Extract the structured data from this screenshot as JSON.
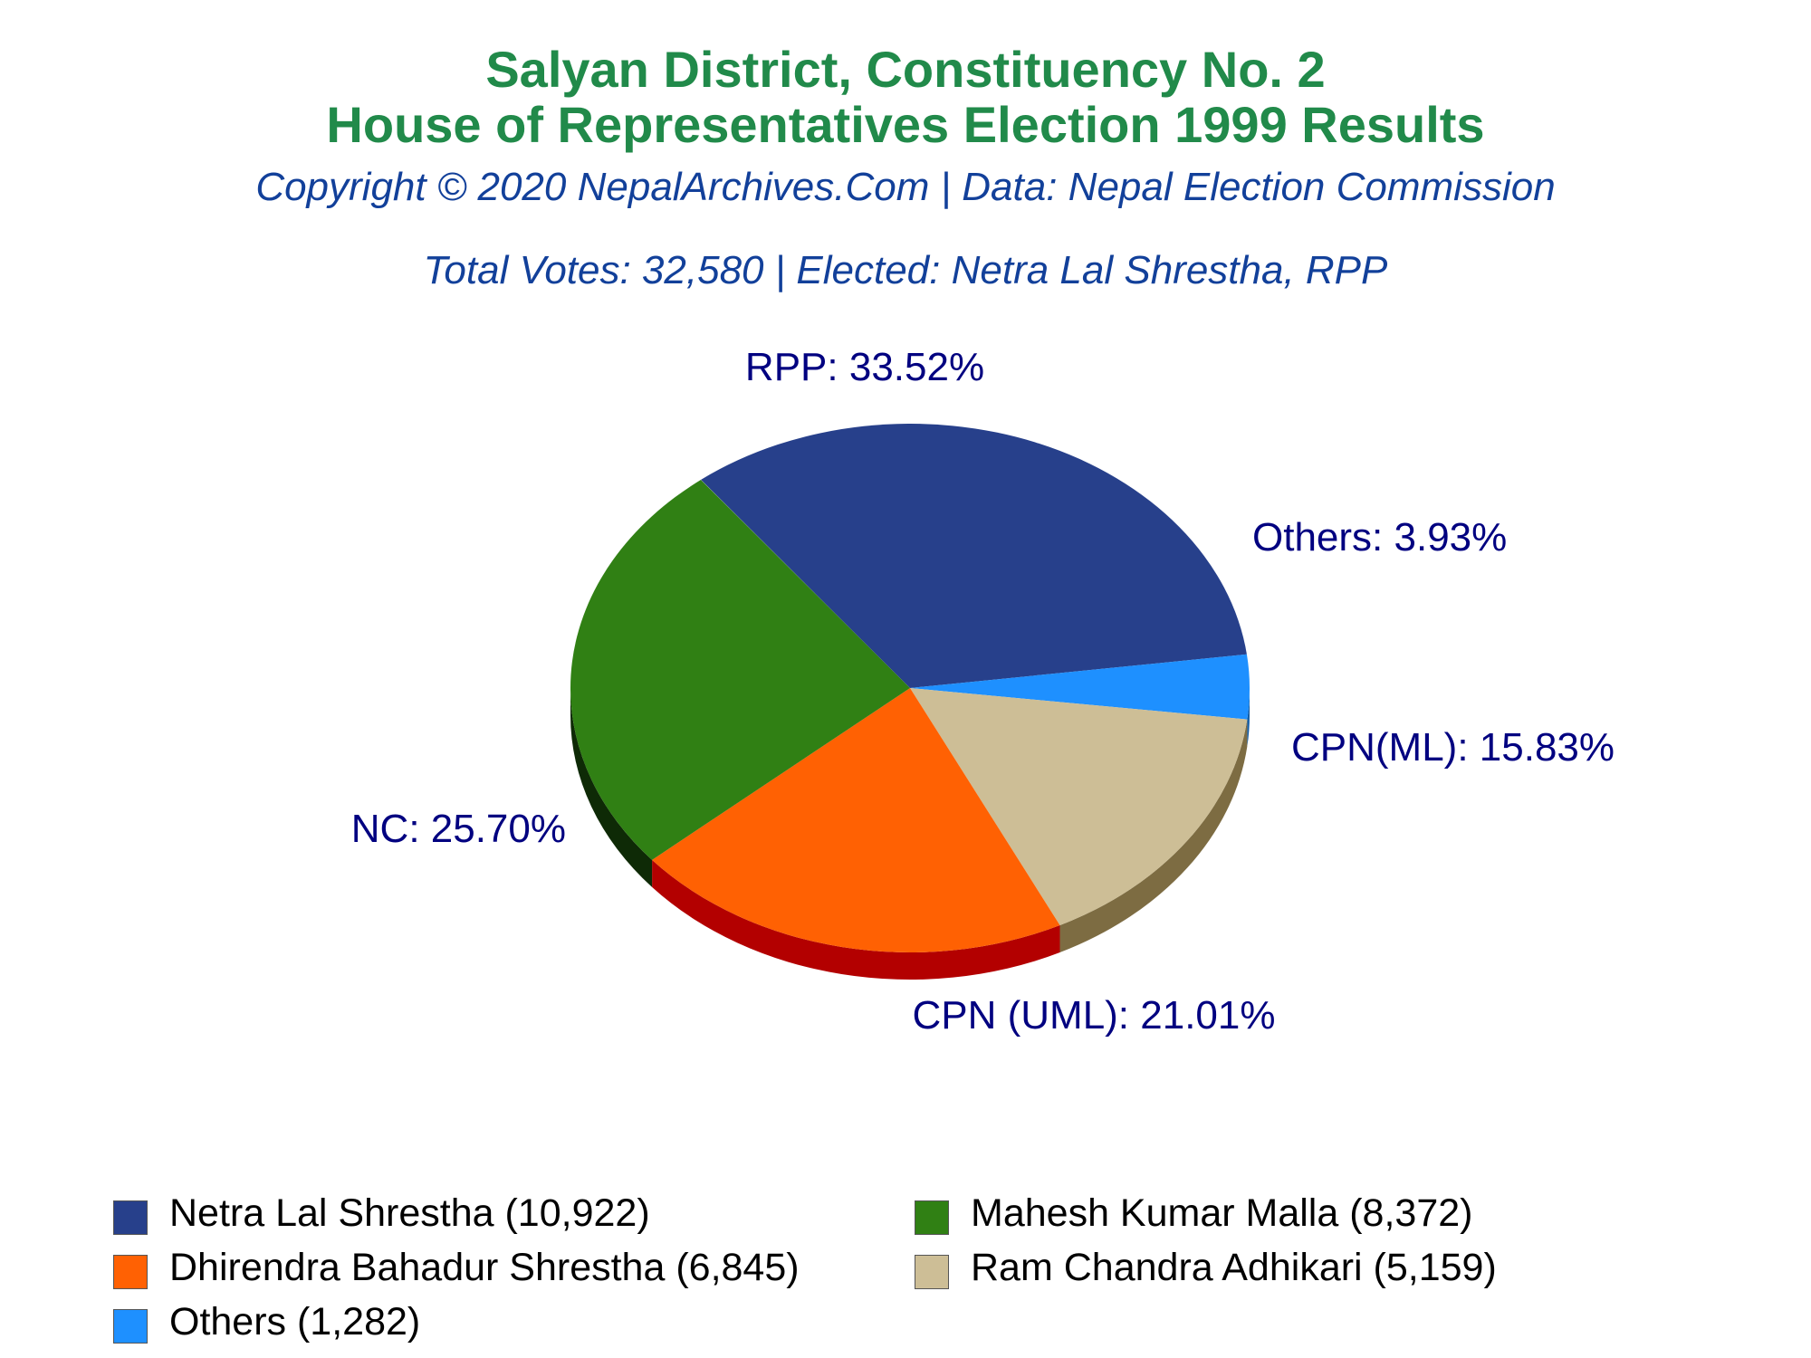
{
  "header": {
    "title_line1": "Salyan District, Constituency No. 2",
    "title_line2": "House of Representatives Election 1999 Results",
    "copyright": "Copyright © 2020 NepalArchives.Com | Data: Nepal Election Commission",
    "summary": "Total Votes: 32,580 | Elected: Netra Lal Shrestha, RPP"
  },
  "chart_data": {
    "type": "pie",
    "style": "3d-tilted",
    "total_votes": 32580,
    "slices": [
      {
        "party": "RPP",
        "candidate": "Netra Lal Shrestha",
        "votes": 10922,
        "percent": 33.52,
        "label": "RPP: 33.52%",
        "legend": "Netra Lal Shrestha (10,922)",
        "color": "#27408b",
        "side_color": "#16275a"
      },
      {
        "party": "Others",
        "candidate": "Others",
        "votes": 1282,
        "percent": 3.93,
        "label": "Others: 3.93%",
        "legend": "Others (1,282)",
        "color": "#1e90ff",
        "side_color": "#115ca6"
      },
      {
        "party": "CPN(ML)",
        "candidate": "Ram Chandra Adhikari",
        "votes": 5159,
        "percent": 15.83,
        "label": "CPN(ML): 15.83%",
        "legend": "Ram Chandra Adhikari (5,159)",
        "color": "#cdbe96",
        "side_color": "#7d6c42"
      },
      {
        "party": "CPN (UML)",
        "candidate": "Dhirendra Bahadur Shrestha",
        "votes": 6845,
        "percent": 21.01,
        "label": "CPN (UML): 21.01%",
        "legend": "Dhirendra Bahadur Shrestha (6,845)",
        "color": "#ff6103",
        "side_color": "#b30000"
      },
      {
        "party": "NC",
        "candidate": "Mahesh Kumar Malla",
        "votes": 8372,
        "percent": 25.7,
        "label": "NC: 25.70%",
        "legend": "Mahesh Kumar Malla (8,372)",
        "color": "#308014",
        "side_color": "#0e2a06"
      }
    ],
    "legend_order": [
      "Netra Lal Shrestha (10,922)",
      "Mahesh Kumar Malla (8,372)",
      "Dhirendra Bahadur Shrestha (6,845)",
      "Ram Chandra Adhikari (5,159)",
      "Others (1,282)"
    ],
    "label_color": "#000080"
  }
}
